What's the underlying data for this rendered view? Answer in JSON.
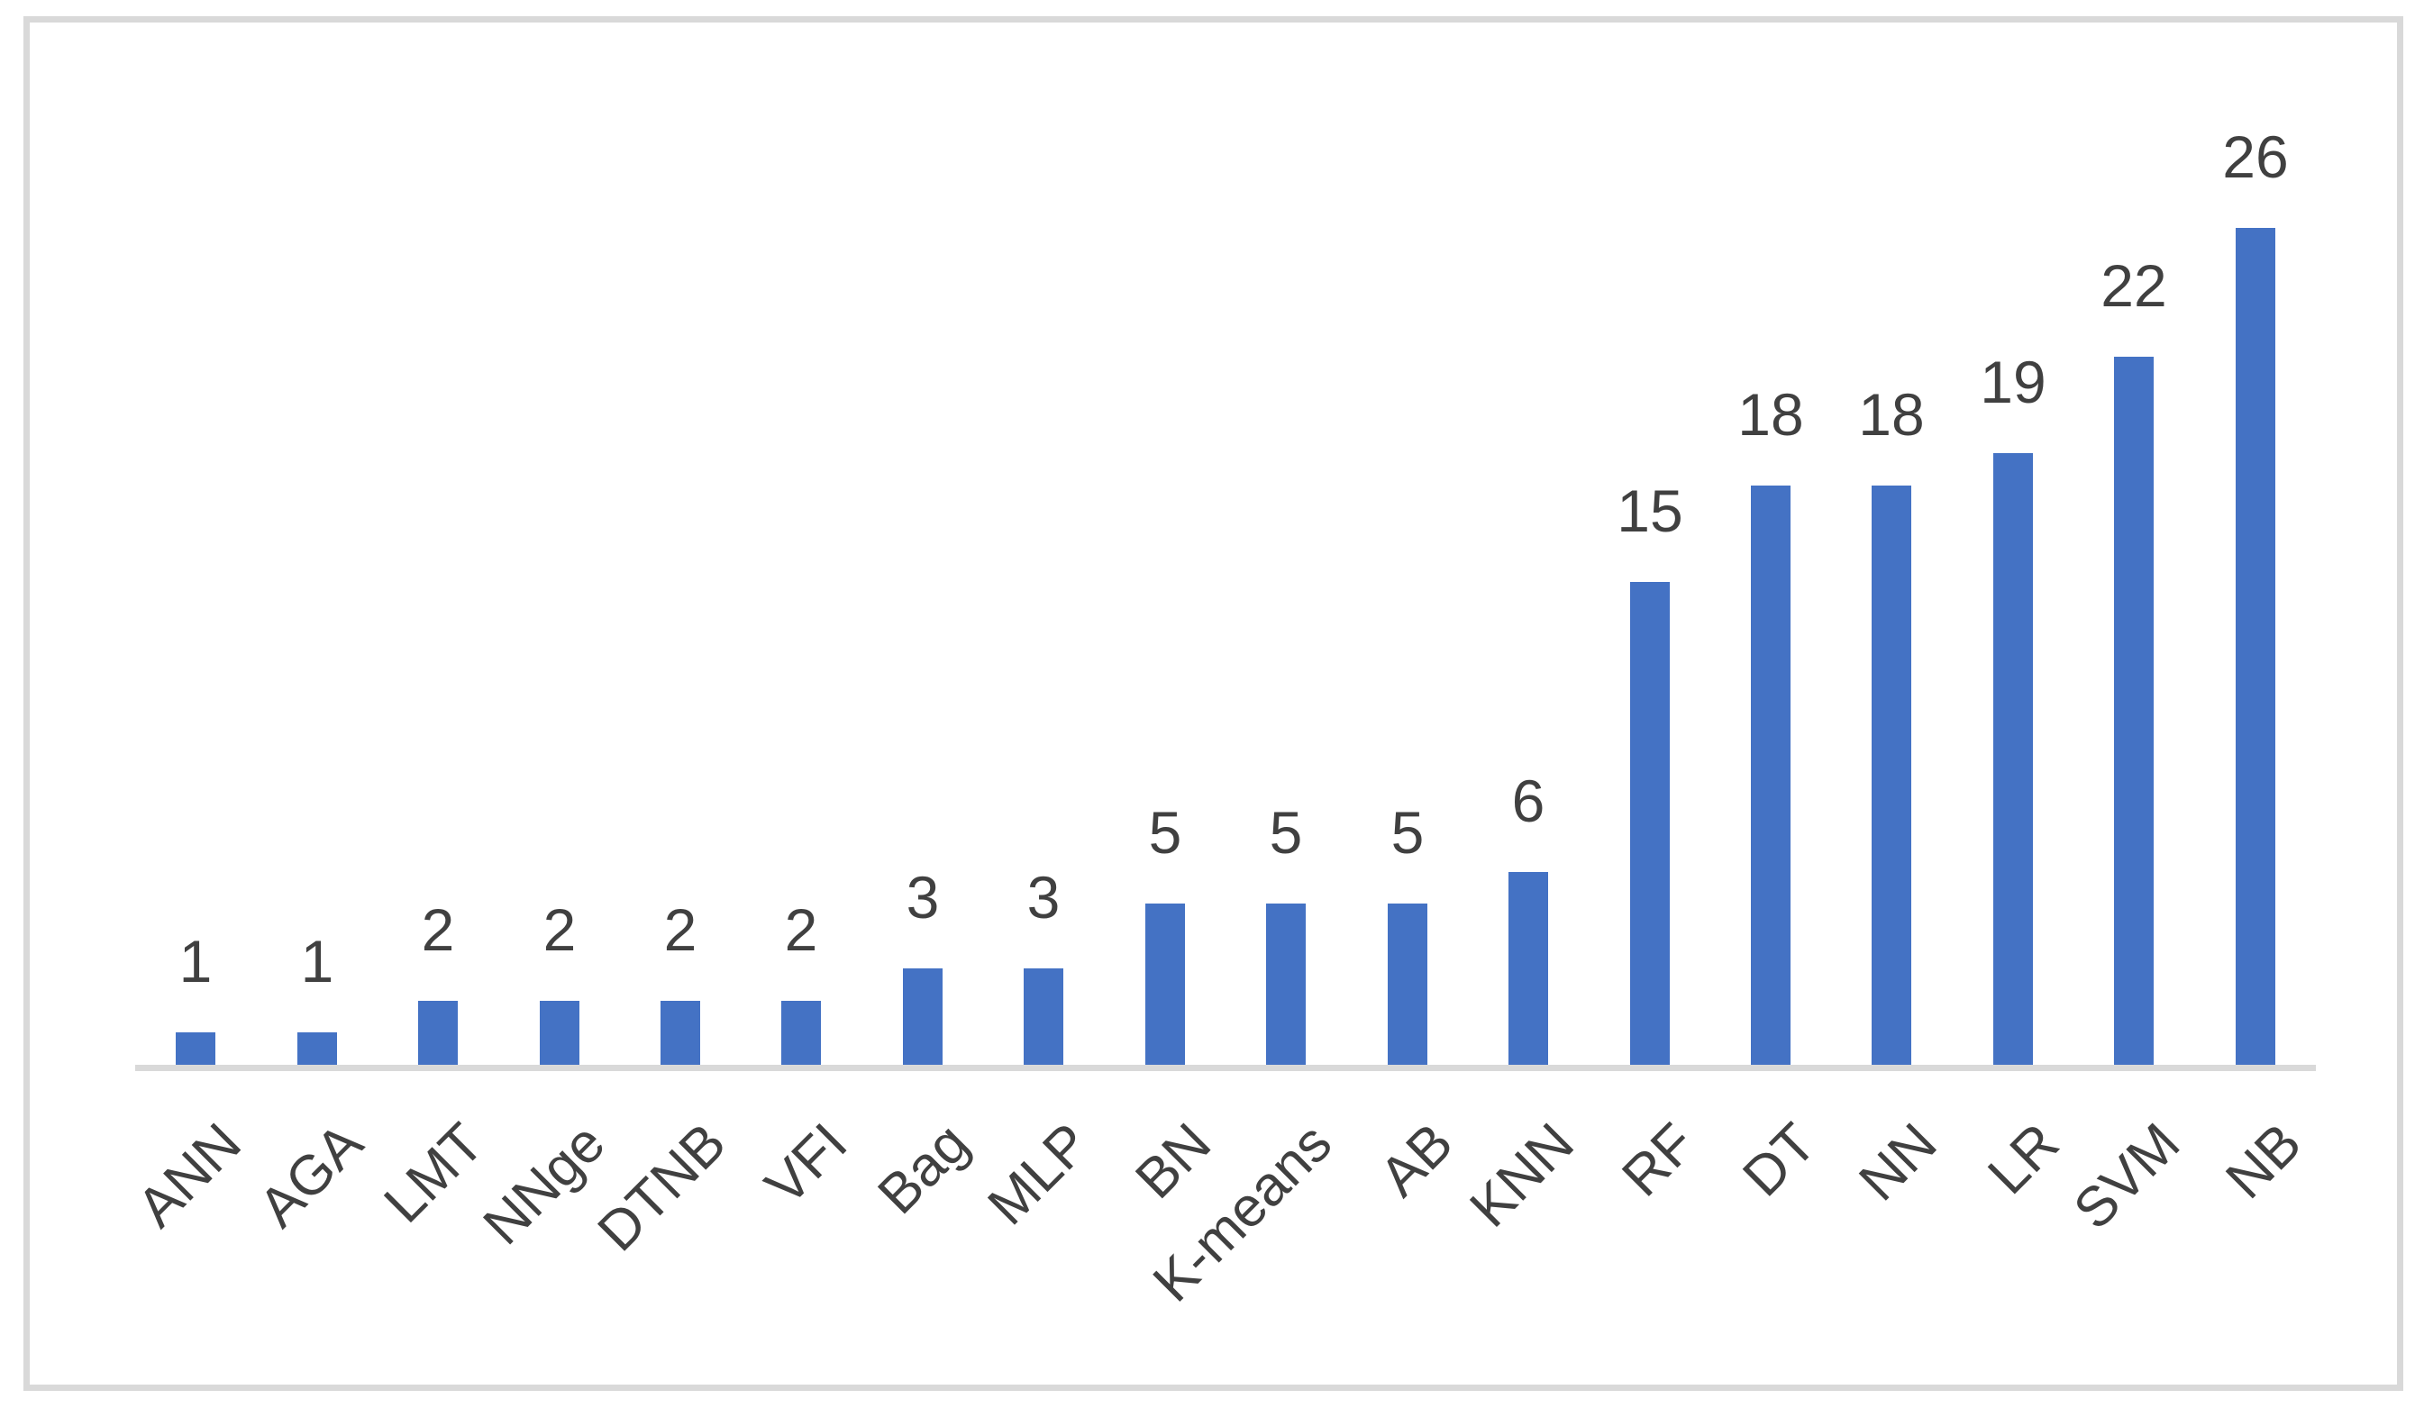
{
  "chart_data": {
    "type": "bar",
    "title": "",
    "xlabel": "",
    "ylabel": "",
    "categories": [
      "ANN",
      "AGA",
      "LMT",
      "NNge",
      "DTNB",
      "VFI",
      "Bag",
      "MLP",
      "BN",
      "K-means",
      "AB",
      "KNN",
      "RF",
      "DT",
      "NN",
      "LR",
      "SVM",
      "NB"
    ],
    "values": [
      1,
      1,
      2,
      2,
      2,
      2,
      3,
      3,
      5,
      5,
      5,
      6,
      15,
      18,
      18,
      19,
      22,
      26
    ],
    "ylim": [
      0,
      26
    ],
    "grid": false,
    "legend": false,
    "data_labels_shown": true,
    "category_label_rotation_deg": 45,
    "bar_color": "#4472C4",
    "label_color": "#404040",
    "axis_color": "#D9D9D9",
    "frame_color": "#D9D9D9",
    "background_color": "#FFFFFF"
  }
}
